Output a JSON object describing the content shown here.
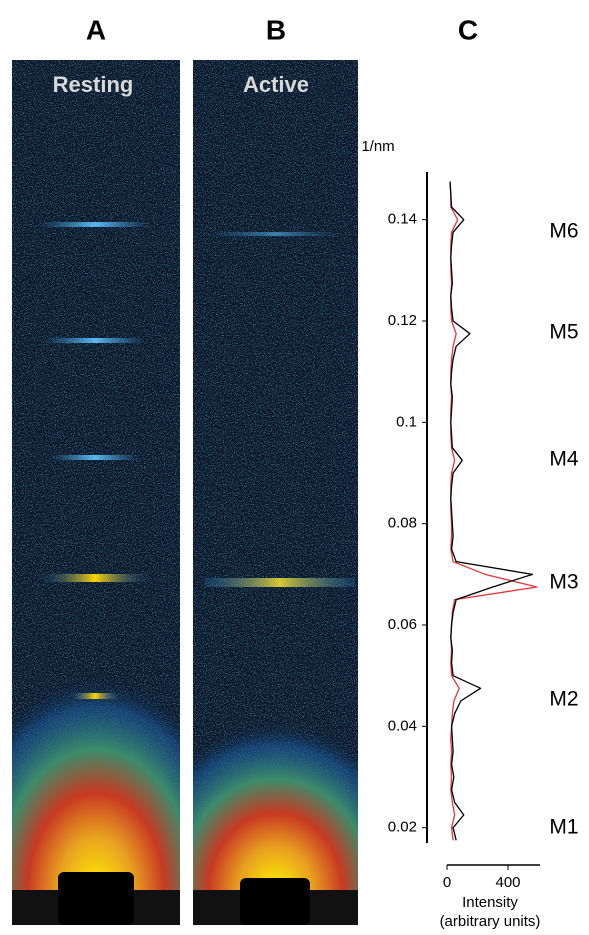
{
  "panel_labels": [
    "A",
    "B"
  ],
  "image_labels": [
    "Resting",
    "Active"
  ],
  "chart_data": {
    "type": "line",
    "title": "C",
    "orientation": "horizontal",
    "y_label": "1/nm",
    "x_label": [
      "Intensity",
      "(arbitrary units)"
    ],
    "annotations": [
      "M6",
      "M5",
      "M4",
      "M3",
      "M2",
      "M1"
    ],
    "y": [
      0.0175,
      0.02,
      0.0225,
      0.025,
      0.0275,
      0.03,
      0.0325,
      0.035,
      0.0375,
      0.04,
      0.0425,
      0.045,
      0.0475,
      0.05,
      0.0525,
      0.055,
      0.0575,
      0.06,
      0.0625,
      0.065,
      0.0675,
      0.07,
      0.0725,
      0.075,
      0.0775,
      0.08,
      0.0825,
      0.085,
      0.0875,
      0.09,
      0.0925,
      0.095,
      0.0975,
      0.1,
      0.1025,
      0.105,
      0.1075,
      0.11,
      0.1125,
      0.115,
      0.1175,
      0.12,
      0.1225,
      0.125,
      0.1275,
      0.13,
      0.1325,
      0.135,
      0.1375,
      0.14,
      0.1425,
      0.145,
      0.1475
    ],
    "series": [
      {
        "color": "#000000",
        "values": [
          60,
          40,
          110,
          50,
          30,
          45,
          30,
          40,
          35,
          30,
          50,
          90,
          220,
          40,
          30,
          35,
          25,
          30,
          40,
          60,
          300,
          560,
          60,
          30,
          40,
          35,
          30,
          25,
          30,
          40,
          100,
          35,
          30,
          25,
          30,
          35,
          25,
          30,
          40,
          60,
          150,
          40,
          30,
          25,
          35,
          30,
          25,
          30,
          40,
          110,
          30,
          25,
          20
        ]
      },
      {
        "color": "#e8323c",
        "values": [
          40,
          30,
          50,
          35,
          25,
          30,
          25,
          30,
          25,
          30,
          35,
          45,
          80,
          30,
          25,
          30,
          25,
          30,
          35,
          50,
          590,
          250,
          40,
          25,
          30,
          30,
          25,
          25,
          25,
          30,
          50,
          30,
          25,
          25,
          25,
          30,
          25,
          25,
          30,
          40,
          60,
          30,
          25,
          25,
          30,
          25,
          25,
          25,
          30,
          70,
          25,
          25,
          20
        ]
      }
    ],
    "ylim": [
      0.015,
      0.15
    ],
    "yticks": [
      0.02,
      0.04,
      0.06,
      0.08,
      0.1,
      0.12,
      0.14
    ],
    "xlim": [
      0,
      600
    ],
    "xticks": [
      0,
      400
    ]
  }
}
